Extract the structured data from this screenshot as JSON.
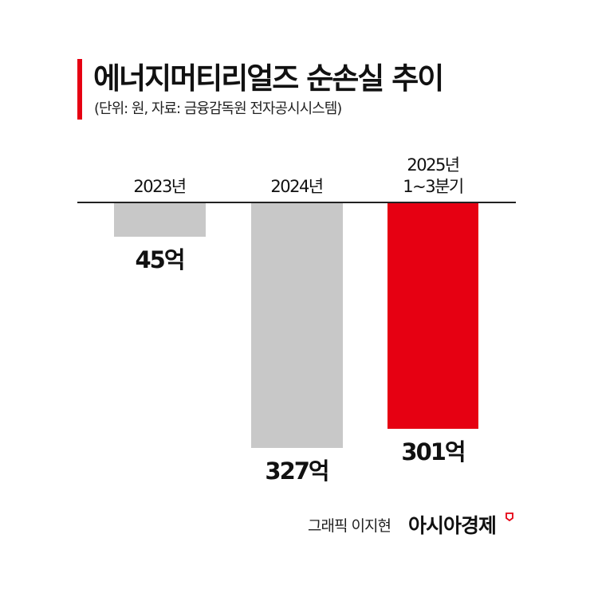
{
  "header": {
    "title": "에너지머티리얼즈 순손실 추이",
    "subtitle": "(단위: 원, 자료: 금융감독원 전자공시시스템)"
  },
  "colors": {
    "accent": "#e60012",
    "bar_gray": "#c8c8c8",
    "bar_highlight": "#e60012",
    "axis": "#222222"
  },
  "chart_data": {
    "type": "bar",
    "orientation": "vertical-downward",
    "title": "에너지머티리얼즈 순손실 추이",
    "subtitle": "(단위: 원, 자료: 금융감독원 전자공시시스템)",
    "categories": [
      "2023년",
      "2024년",
      "2025년 1~3분기"
    ],
    "values": [
      45,
      327,
      301
    ],
    "value_labels": [
      "45억",
      "327억",
      "301억"
    ],
    "unit": "억 원",
    "highlight_index": 2,
    "xlabel": "",
    "ylabel": "",
    "grid": false,
    "legend": null
  },
  "bars": [
    {
      "label_lines": [
        "2023년"
      ],
      "value_label": "45억",
      "color": "#c8c8c8"
    },
    {
      "label_lines": [
        "2024년"
      ],
      "value_label": "327억",
      "color": "#c8c8c8"
    },
    {
      "label_lines": [
        "2025년",
        "1~3분기"
      ],
      "value_label": "301억",
      "color": "#e60012"
    }
  ],
  "footer": {
    "credit": "그래픽 이지현",
    "brand": "아시아경제",
    "brand_icon": "brand-mark-icon"
  }
}
